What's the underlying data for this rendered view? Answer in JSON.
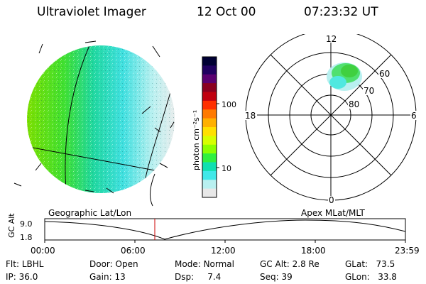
{
  "header": {
    "title": "Ultraviolet Imager",
    "date": "12 Oct 00",
    "time": "07:23:32 UT"
  },
  "colorbar": {
    "unit_label": "photon cm⁻²s⁻¹",
    "ticks": [
      "100",
      "10"
    ],
    "colors": [
      "#000033",
      "#200060",
      "#5a0070",
      "#8a0020",
      "#c00010",
      "#ff3000",
      "#ff7a00",
      "#ffb000",
      "#ffe000",
      "#d6ff00",
      "#8cff00",
      "#30f040",
      "#10e0b0",
      "#40e8e8",
      "#b8f0f0",
      "#e8e8e8"
    ]
  },
  "polar_plot": {
    "hour_labels": [
      "12",
      "18",
      "6",
      "0"
    ],
    "lat_labels": [
      "60",
      "70",
      "80"
    ]
  },
  "timeline": {
    "left_label": "Geographic Lat/Lon",
    "right_label": "Apex MLat/MLT",
    "axis_title": "GC Alt",
    "y_ticks": [
      "9.0",
      "1.8"
    ],
    "x_ticks": [
      "00:00",
      "06:00",
      "12:00",
      "18:00",
      "23:59"
    ],
    "marker_color": "#cc0000"
  },
  "info": {
    "filter": {
      "label": "Flt:",
      "value": "LBHL"
    },
    "ip": {
      "label": "IP:",
      "value": "36.0"
    },
    "door": {
      "label": "Door:",
      "value": "Open"
    },
    "gain": {
      "label": "Gain:",
      "value": "13"
    },
    "mode": {
      "label": "Mode:",
      "value": "Normal"
    },
    "dsp": {
      "label": "Dsp:",
      "value": "7.4"
    },
    "gc_alt": {
      "label": "GC Alt:",
      "value": "2.8 Re"
    },
    "seq": {
      "label": "Seq:",
      "value": "39"
    },
    "glat": {
      "label": "GLat:",
      "value": "73.5"
    },
    "glon": {
      "label": "GLon:",
      "value": "33.8"
    }
  }
}
